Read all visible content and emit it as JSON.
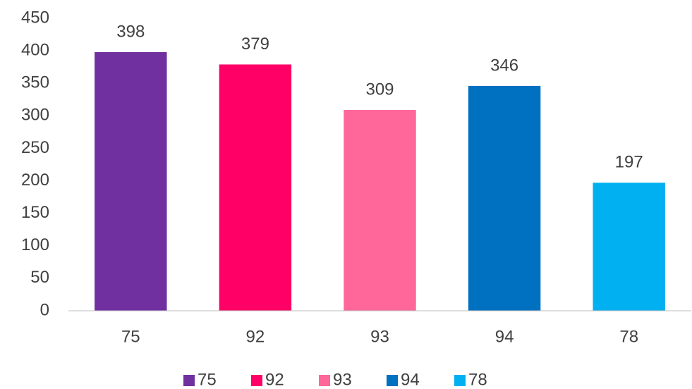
{
  "chart_data": {
    "type": "bar",
    "categories": [
      "75",
      "92",
      "93",
      "94",
      "78"
    ],
    "values": [
      398,
      379,
      309,
      346,
      197
    ],
    "colors": [
      "#7030a0",
      "#ff0066",
      "#ff6699",
      "#0070c0",
      "#00b0f0"
    ],
    "ylim": [
      0,
      450
    ],
    "yticks": [
      0,
      50,
      100,
      150,
      200,
      250,
      300,
      350,
      400,
      450
    ],
    "grid": false,
    "legend": "bottom"
  }
}
